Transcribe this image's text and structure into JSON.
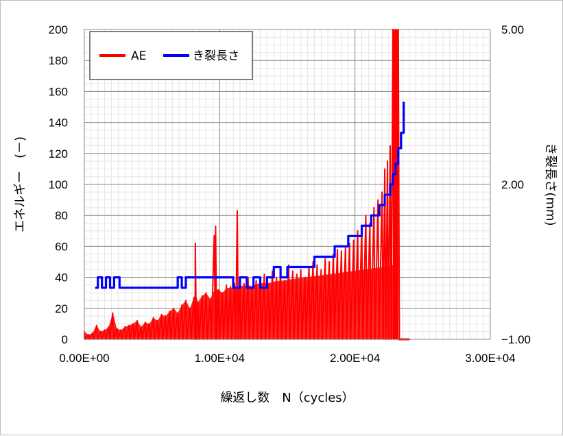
{
  "chart_data": {
    "type": "line",
    "xlabel": "繰返し数　N（cycles）",
    "ylabel_left": "エネルギー　(－)",
    "ylabel_right": "き裂長さ(mm)",
    "xlim": [
      0,
      30000
    ],
    "ylim_left": [
      0,
      200
    ],
    "ylim_right": [
      -1,
      5
    ],
    "x_ticks": [
      {
        "value": 0,
        "label": "0.00E+00"
      },
      {
        "value": 10000,
        "label": "1.00E+04"
      },
      {
        "value": 20000,
        "label": "2.00E+04"
      },
      {
        "value": 30000,
        "label": "3.00E+04"
      }
    ],
    "y_left_ticks": [
      {
        "value": 0,
        "label": "0"
      },
      {
        "value": 20,
        "label": "20"
      },
      {
        "value": 40,
        "label": "40"
      },
      {
        "value": 60,
        "label": "60"
      },
      {
        "value": 80,
        "label": "80"
      },
      {
        "value": 100,
        "label": "100"
      },
      {
        "value": 120,
        "label": "120"
      },
      {
        "value": 140,
        "label": "140"
      },
      {
        "value": 160,
        "label": "160"
      },
      {
        "value": 180,
        "label": "180"
      },
      {
        "value": 200,
        "label": "200"
      }
    ],
    "y_right_ticks": [
      {
        "value": -1,
        "label": "−1.00"
      },
      {
        "value": 2,
        "label": "2.00"
      },
      {
        "value": 5,
        "label": "5.00"
      }
    ],
    "grid": true,
    "legend_position": "top-left",
    "series": [
      {
        "name": "AE",
        "color": "#ff0000",
        "axis": "left",
        "style": "dense-spikes",
        "x": [
          0,
          300,
          600,
          900,
          1200,
          1500,
          1800,
          2100,
          2400,
          2700,
          3000,
          3300,
          3600,
          3900,
          4200,
          4500,
          4800,
          5100,
          5400,
          5700,
          6000,
          6300,
          6600,
          6900,
          7200,
          7500,
          7800,
          8100,
          8200,
          8400,
          8700,
          9000,
          9300,
          9600,
          9700,
          9900,
          10200,
          10500,
          10800,
          11100,
          11300,
          11500,
          11800,
          12100,
          12400,
          12700,
          13000,
          13300,
          13600,
          13900,
          14200,
          14500,
          14800,
          15100,
          15400,
          15700,
          16000,
          16300,
          16600,
          16900,
          17200,
          17500,
          17800,
          18100,
          18400,
          18700,
          19000,
          19300,
          19600,
          19900,
          20200,
          20500,
          20800,
          21100,
          21400,
          21700,
          22000,
          22200,
          22400,
          22600,
          22800,
          23000,
          23200,
          23400,
          24000
        ],
        "y": [
          5,
          3,
          4,
          9,
          5,
          6,
          8,
          17,
          7,
          6,
          8,
          9,
          10,
          12,
          8,
          11,
          10,
          14,
          12,
          16,
          15,
          18,
          20,
          17,
          22,
          25,
          20,
          27,
          62,
          24,
          28,
          30,
          26,
          67,
          73,
          32,
          30,
          35,
          34,
          36,
          83,
          38,
          36,
          40,
          34,
          38,
          40,
          42,
          36,
          44,
          40,
          45,
          38,
          48,
          44,
          42,
          45,
          40,
          47,
          50,
          48,
          45,
          52,
          50,
          55,
          58,
          57,
          60,
          62,
          64,
          70,
          72,
          80,
          75,
          85,
          90,
          95,
          110,
          115,
          125,
          200,
          200,
          200,
          0,
          0
        ]
      },
      {
        "name": "き裂長さ",
        "color": "#0000ff",
        "axis": "right",
        "x": [
          800,
          1000,
          1300,
          1600,
          1900,
          2200,
          2600,
          3000,
          4000,
          5000,
          6000,
          6500,
          6900,
          7200,
          7500,
          7800,
          8200,
          8600,
          9000,
          9500,
          10000,
          10500,
          11000,
          11500,
          12000,
          12500,
          13000,
          13500,
          14000,
          14500,
          15000,
          15500,
          16000,
          16500,
          17000,
          17500,
          18000,
          18500,
          19000,
          19500,
          20000,
          20500,
          21000,
          21200,
          21500,
          21800,
          22000,
          22200,
          22400,
          22600,
          22800,
          23000,
          23200,
          23400,
          23600
        ],
        "y": [
          0.0,
          0.2,
          0.0,
          0.2,
          0.0,
          0.2,
          0.0,
          0.0,
          0.0,
          0.0,
          0.0,
          0.0,
          0.2,
          0.0,
          0.2,
          0.2,
          0.2,
          0.2,
          0.2,
          0.2,
          0.2,
          0.2,
          0.0,
          0.2,
          0.0,
          0.2,
          0.0,
          0.2,
          0.4,
          0.2,
          0.4,
          0.4,
          0.4,
          0.4,
          0.6,
          0.6,
          0.6,
          0.8,
          0.8,
          1.0,
          1.0,
          1.2,
          1.2,
          1.4,
          1.4,
          1.6,
          1.6,
          1.8,
          1.8,
          2.0,
          2.2,
          2.4,
          2.7,
          3.0,
          3.6
        ]
      }
    ]
  }
}
